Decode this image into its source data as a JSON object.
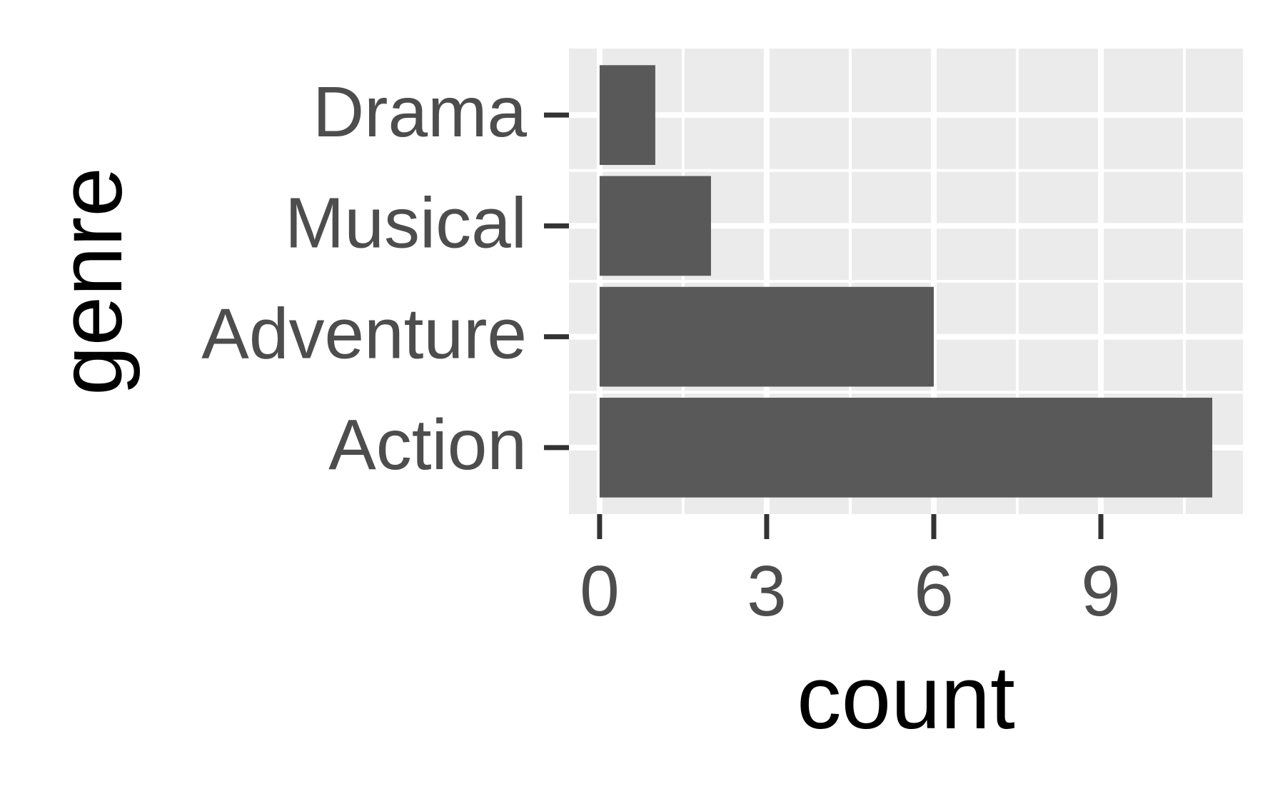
{
  "chart_data": {
    "type": "bar",
    "orientation": "horizontal",
    "categories": [
      "Action",
      "Adventure",
      "Musical",
      "Drama"
    ],
    "values": [
      11,
      6,
      2,
      1
    ],
    "xlabel": "count",
    "ylabel": "genre",
    "xlim": [
      -0.55,
      11.55
    ],
    "x_ticks": [
      0,
      3,
      6,
      9
    ],
    "grid": true,
    "legend": "none",
    "colors": {
      "bar": "#595959",
      "panel": "#ebebeb",
      "grid": "#ffffff",
      "tick": "#333333",
      "tick_label": "#4d4d4d",
      "axis_title": "#000000"
    }
  }
}
